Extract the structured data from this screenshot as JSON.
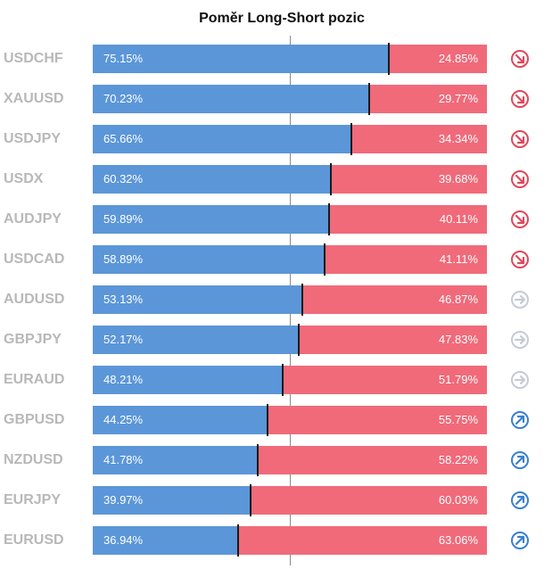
{
  "title": "Poměr Long-Short pozic",
  "colors": {
    "long": "#5b96d8",
    "short": "#f06a7a",
    "down_icon": "#e0475a",
    "neutral_icon": "#c6cad6",
    "up_icon": "#3a7fd0",
    "symbol_text": "#b8b8b8"
  },
  "chart_data": {
    "type": "bar",
    "orientation": "horizontal-stacked-100",
    "categories": [
      "USDCHF",
      "XAUUSD",
      "USDJPY",
      "USDX",
      "AUDJPY",
      "USDCAD",
      "AUDUSD",
      "GBPJPY",
      "EURAUD",
      "GBPUSD",
      "NZDUSD",
      "EURJPY",
      "EURUSD"
    ],
    "series": [
      {
        "values": [
          75.15,
          70.23,
          65.66,
          60.32,
          59.89,
          58.89,
          53.13,
          52.17,
          48.21,
          44.25,
          41.78,
          39.97,
          36.94
        ]
      },
      {
        "values": [
          24.85,
          29.77,
          34.34,
          39.68,
          40.11,
          41.11,
          46.87,
          47.83,
          51.79,
          55.75,
          58.22,
          60.03,
          63.06
        ]
      }
    ],
    "long_labels": [
      "75.15%",
      "70.23%",
      "65.66%",
      "60.32%",
      "59.89%",
      "58.89%",
      "53.13%",
      "52.17%",
      "48.21%",
      "44.25%",
      "41.78%",
      "39.97%",
      "36.94%"
    ],
    "short_labels": [
      "24.85%",
      "29.77%",
      "34.34%",
      "39.68%",
      "40.11%",
      "41.11%",
      "46.87%",
      "47.83%",
      "51.79%",
      "55.75%",
      "58.22%",
      "60.03%",
      "63.06%"
    ],
    "trend_icons": [
      "arrow-down-right-icon",
      "arrow-down-right-icon",
      "arrow-down-right-icon",
      "arrow-down-right-icon",
      "arrow-down-right-icon",
      "arrow-down-right-icon",
      "arrow-right-icon",
      "arrow-right-icon",
      "arrow-right-icon",
      "arrow-up-right-icon",
      "arrow-up-right-icon",
      "arrow-up-right-icon",
      "arrow-up-right-icon"
    ],
    "xlim": [
      0,
      100
    ],
    "reference_line": 50
  }
}
